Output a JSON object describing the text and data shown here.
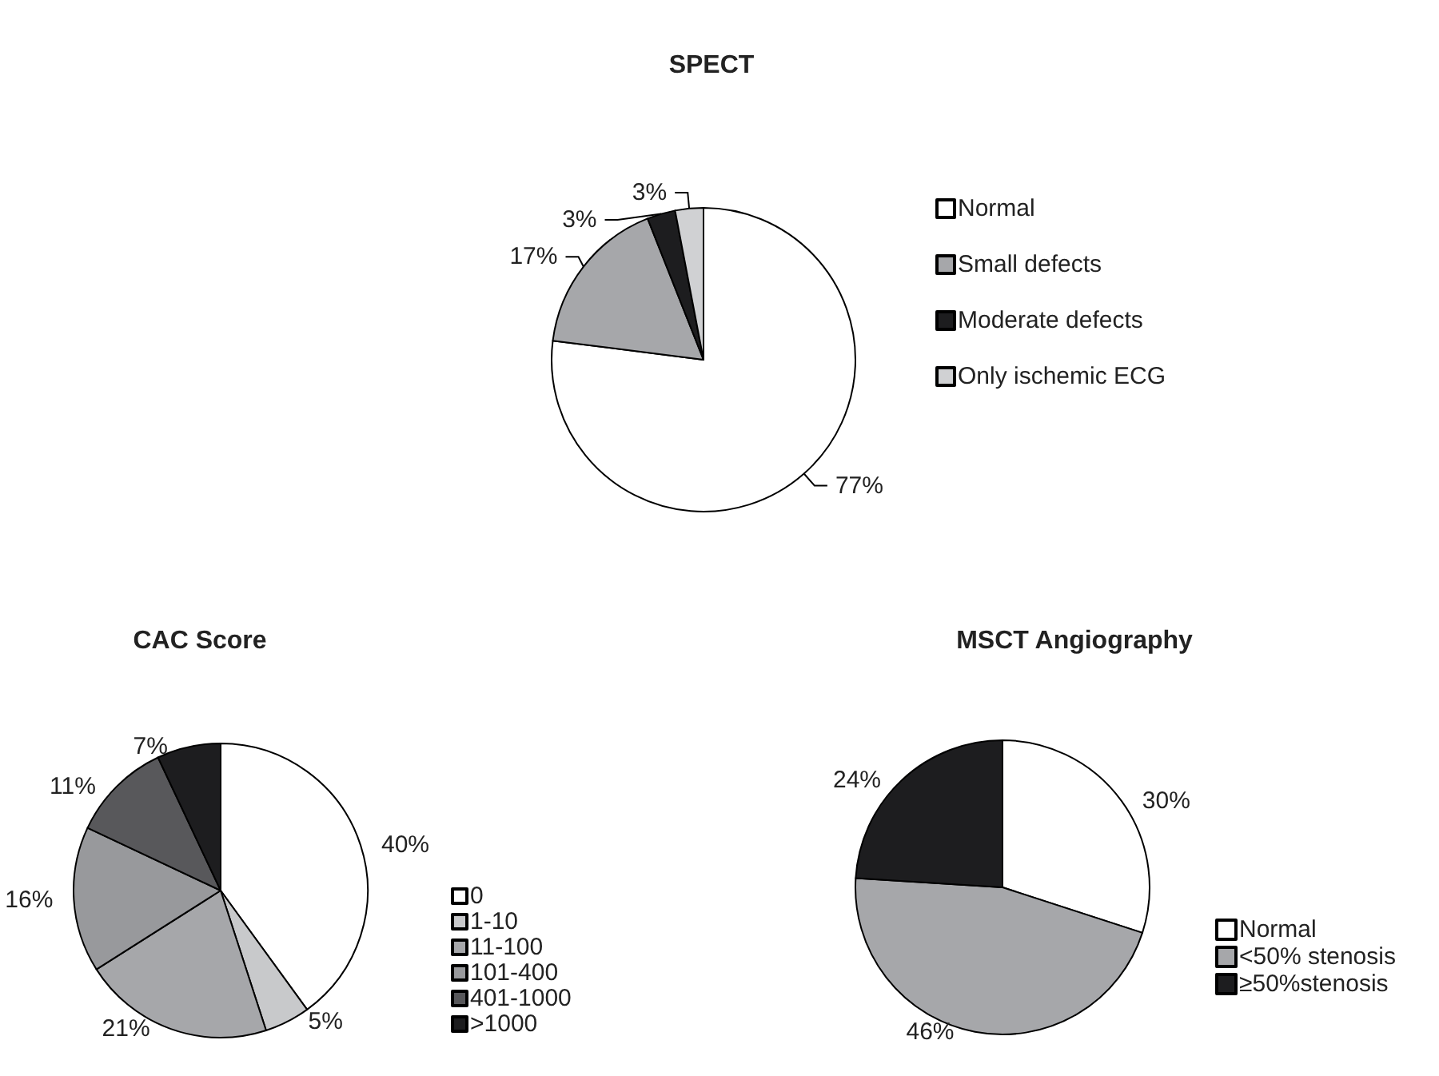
{
  "chart_data": [
    {
      "type": "pie",
      "title": "SPECT",
      "categories": [
        "Normal",
        "Small defects",
        "Moderate defects",
        "Only ischemic ECG"
      ],
      "values": [
        77,
        17,
        3,
        3
      ],
      "colors": [
        "#ffffff",
        "#a6a7aa",
        "#1d1d1f",
        "#d0d1d3"
      ],
      "value_labels": [
        "77%",
        "17%",
        "3%",
        "3%"
      ],
      "legend": "right"
    },
    {
      "type": "pie",
      "title": "CAC Score",
      "categories": [
        "0",
        "1-10",
        "11-100",
        "101-400",
        "401-1000",
        ">1000"
      ],
      "values": [
        40,
        5,
        21,
        16,
        11,
        7
      ],
      "colors": [
        "#ffffff",
        "#c8c9cb",
        "#a6a7aa",
        "#98999c",
        "#58585b",
        "#1d1d1f"
      ],
      "value_labels": [
        "40%",
        "5%",
        "21%",
        "16%",
        "11%",
        "7%"
      ],
      "legend": "bottom right"
    },
    {
      "type": "pie",
      "title": "MSCT Angiography",
      "categories": [
        "Normal",
        "<50% stenosis",
        "≥50%stenosis"
      ],
      "values": [
        30,
        46,
        24
      ],
      "colors": [
        "#ffffff",
        "#a6a7aa",
        "#1d1d1f"
      ],
      "value_labels": [
        "30%",
        "46%",
        "24%"
      ],
      "legend": "bottom right"
    }
  ]
}
